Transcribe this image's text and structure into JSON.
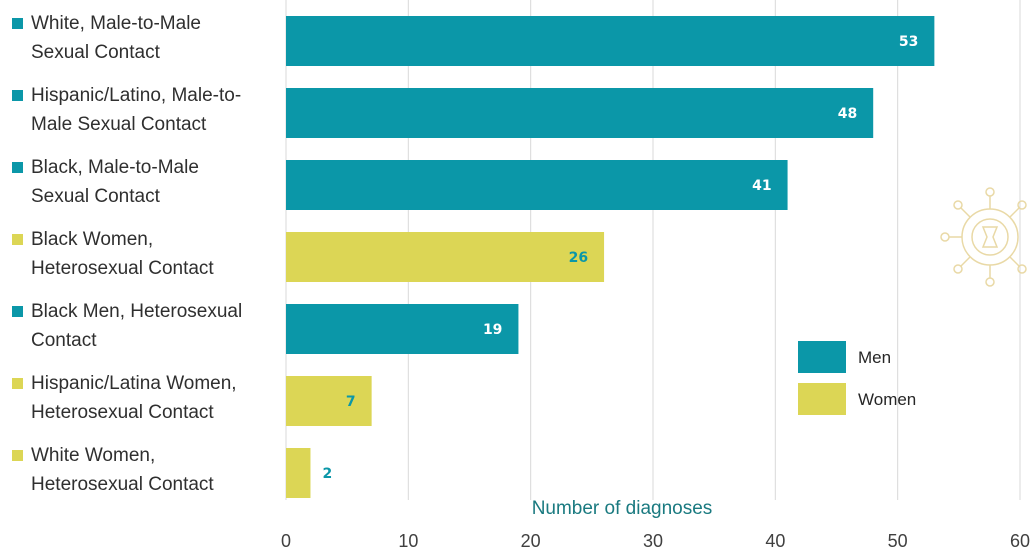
{
  "chart_data": {
    "type": "bar",
    "orientation": "horizontal",
    "title": "",
    "xlabel": "Number of diagnoses",
    "ylabel": "",
    "xlim": [
      0,
      60
    ],
    "x_ticks": [
      0,
      10,
      20,
      30,
      40,
      50,
      60
    ],
    "grid": "vertical",
    "legend_position": "right",
    "categories": [
      "White, Male-to-Male Sexual Contact",
      "Hispanic/Latino, Male-to-Male Sexual Contact",
      "Black, Male-to-Male Sexual Contact",
      "Black Women, Heterosexual Contact",
      "Black Men, Heterosexual Contact",
      "Hispanic/Latina Women, Heterosexual Contact",
      "White Women, Heterosexual Contact"
    ],
    "category_lines": [
      [
        "White, Male-to-Male",
        "Sexual Contact"
      ],
      [
        "Hispanic/Latino, Male-to-",
        "Male Sexual Contact"
      ],
      [
        "Black, Male-to-Male",
        "Sexual Contact"
      ],
      [
        "Black Women,",
        "Heterosexual Contact"
      ],
      [
        "Black Men, Heterosexual",
        "Contact"
      ],
      [
        "Hispanic/Latina Women,",
        "Heterosexual Contact"
      ],
      [
        "White Women,",
        "Heterosexual Contact"
      ]
    ],
    "values": [
      53,
      48,
      41,
      26,
      19,
      7,
      2
    ],
    "groups": [
      "Men",
      "Men",
      "Men",
      "Women",
      "Men",
      "Women",
      "Women"
    ],
    "legend": [
      {
        "name": "Men",
        "color": "#0b97a8"
      },
      {
        "name": "Women",
        "color": "#dcd655"
      }
    ],
    "colors": {
      "men": "#0b97a8",
      "women": "#dcd655",
      "men_label": "#ffffff",
      "women_label": "#0b97a8",
      "grid": "#d9d9d9",
      "axis_title": "#1a7a80",
      "watermark": "#e9d9a6"
    },
    "watermark_icon": "virus-icon"
  }
}
